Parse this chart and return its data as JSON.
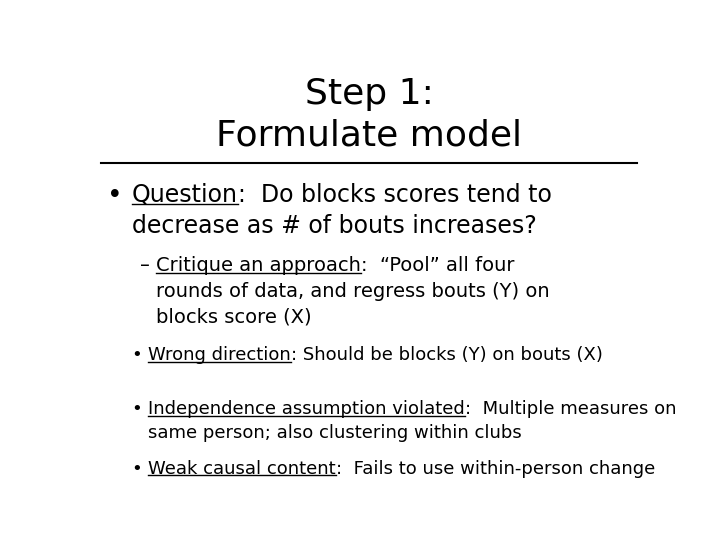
{
  "title_line1": "Step 1:",
  "title_line2": "Formulate model",
  "background_color": "#ffffff",
  "text_color": "#000000",
  "title_fontsize": 26,
  "body_fontsize": 17,
  "sub_fontsize": 14,
  "bullet_fontsize": 13,
  "bullet1_label": "Question",
  "sub1_label": "Critique an approach",
  "sub2_label": "Wrong direction",
  "sub2_text": ": Should be blocks (Y) on bouts (X)",
  "sub3_label": "Independence assumption violated",
  "sub3_text_1": ":  Multiple measures on",
  "sub3_text_2": "same person; also clustering within clubs",
  "sub4_label": "Weak causal content",
  "sub4_text": ":  Fails to use within-person change"
}
